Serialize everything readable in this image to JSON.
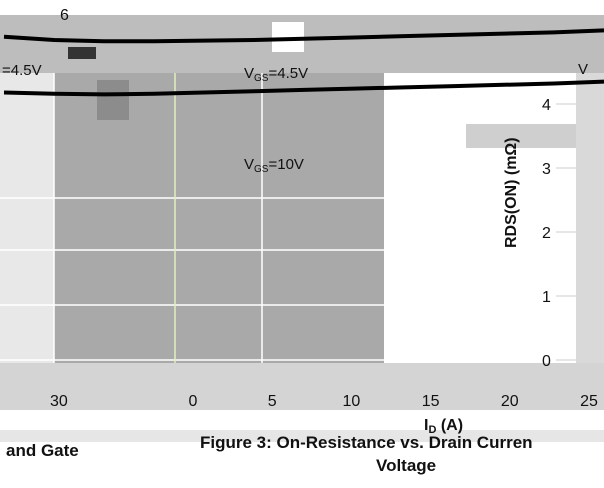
{
  "figure_top_label": "6",
  "left_partial": {
    "x_tick_30": "30",
    "vgs_45_label": "=4.5V",
    "caption": "and Gate"
  },
  "chart_data": {
    "type": "line",
    "ylabel": "RDS(ON) (mΩ)",
    "xlabel": "ID (A)",
    "xlim": [
      0,
      25
    ],
    "ylim": [
      0,
      5
    ],
    "x_ticks": [
      "0",
      "5",
      "10",
      "15",
      "20",
      "25"
    ],
    "y_ticks": [
      "0",
      "1",
      "2",
      "3",
      "4"
    ],
    "series": [
      {
        "name": "VGS=4.5V",
        "x": [
          0,
          2,
          4,
          6,
          8,
          10,
          12,
          14,
          16,
          18,
          20,
          22,
          25
        ],
        "y": [
          5.05,
          5.0,
          4.98,
          4.98,
          4.99,
          5.0,
          5.02,
          5.04,
          5.06,
          5.08,
          5.1,
          5.12,
          5.15
        ]
      },
      {
        "name": "VGS=10V",
        "x": [
          0,
          2,
          4,
          6,
          8,
          10,
          12,
          14,
          16,
          18,
          20,
          22,
          25
        ],
        "y": [
          4.18,
          4.16,
          4.15,
          4.16,
          4.18,
          4.2,
          4.22,
          4.24,
          4.26,
          4.28,
          4.3,
          4.32,
          4.35
        ]
      }
    ],
    "annotations": {
      "vgs45_label_sub": "GS",
      "vgs45_label_value": "=4.5V",
      "vgs10_label_sub": "GS",
      "vgs10_label_value": "=10V",
      "right_edge_label": "V"
    },
    "caption_line1": "Figure 3: On-Resistance vs. Drain Curren",
    "caption_line2": "Voltage"
  },
  "colors": {
    "panel_gray": "#a9a9a9",
    "panel_gray_dark": "#8c8c8c",
    "strip_gray": "#cfcfcf",
    "curve": "#000000"
  }
}
